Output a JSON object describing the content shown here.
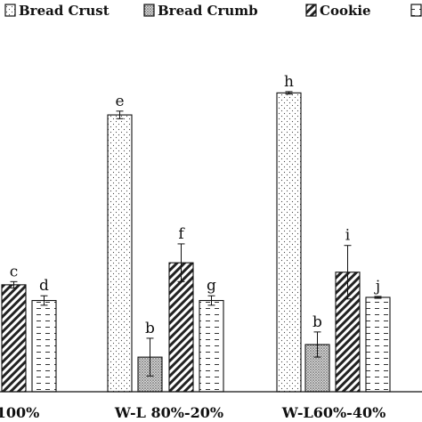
{
  "chart_data": {
    "type": "bar",
    "categories": [
      "100%",
      "W-L 80%-20%",
      "W-L60%-40%"
    ],
    "series": [
      {
        "name": "Bread Crust",
        "pattern": "dots",
        "values": [
          null,
          88,
          95
        ],
        "errors": [
          null,
          1.2,
          0.4
        ],
        "letters": [
          "",
          "e",
          "h"
        ]
      },
      {
        "name": "Bread Crumb",
        "pattern": "speckle",
        "values": [
          null,
          11,
          15
        ],
        "errors": [
          null,
          6,
          4
        ],
        "letters": [
          "",
          "b",
          "b"
        ]
      },
      {
        "name": "Cookie",
        "pattern": "hatch",
        "values": [
          34,
          41,
          38
        ],
        "errors": [
          1,
          6,
          8.5
        ],
        "letters": [
          "c",
          "f",
          "i"
        ]
      },
      {
        "name": "",
        "pattern": "dashes",
        "values": [
          29,
          29,
          30
        ],
        "errors": [
          1.5,
          1.5,
          0.3
        ],
        "letters": [
          "d",
          "g",
          "j"
        ]
      }
    ],
    "ylim": [
      0,
      105
    ],
    "legend_position": "top",
    "grid": false,
    "title": "",
    "xlabel": "",
    "ylabel": ""
  }
}
